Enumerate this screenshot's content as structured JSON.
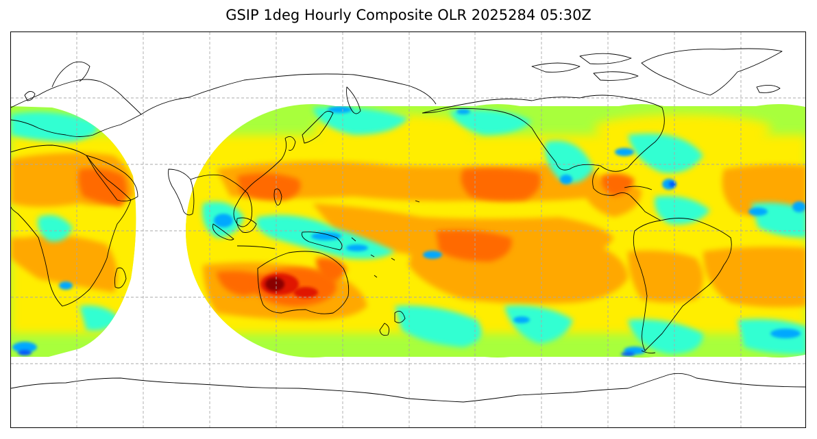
{
  "figure": {
    "title": "GSIP 1deg Hourly Composite OLR 2025284 05:30Z"
  },
  "map": {
    "projection": "equirectangular",
    "field": "Outgoing Longwave Radiation",
    "gridlines": "dashed gray, every 30 degrees",
    "coastlines": "black",
    "coverage": "geostationary satellite discs, approx 60S to 60N",
    "colormap": "jet",
    "colors": {
      "very_low": "#0055ff",
      "low": "#00a8ff",
      "cyan": "#33ffd2",
      "green": "#a8ff3c",
      "yellow": "#ffee00",
      "orange": "#ffa800",
      "dark_orange": "#ff6a00",
      "red": "#e01800",
      "dark_red": "#8a0000"
    },
    "notable_features": [
      "hot high-OLR maximum over western Australia",
      "broad orange high-OLR areas in subtropical Pacific and Atlantic",
      "blue low-OLR convection in the tropics and storm tracks"
    ]
  }
}
